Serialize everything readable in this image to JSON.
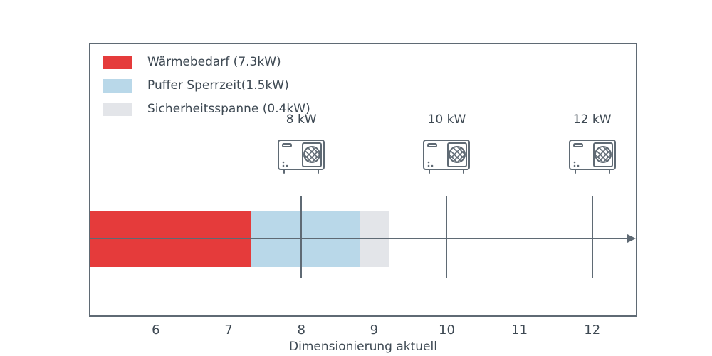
{
  "colors": {
    "red": "#e53b3b",
    "blue": "#b9d8e9",
    "gray": "#e3e5e9",
    "axis": "#5f6a74",
    "text": "#3e4953"
  },
  "legend": {
    "items": [
      {
        "label": "Wärmebedarf (7.3kW)",
        "color": "#e53b3b"
      },
      {
        "label": "Puffer Sperrzeit(1.5kW)",
        "color": "#b9d8e9"
      },
      {
        "label": "Sicherheitsspanne (0.4kW)",
        "color": "#e3e5e9"
      }
    ]
  },
  "chart_data": {
    "type": "bar",
    "orientation": "horizontal-stacked",
    "title": "",
    "xlabel": "Dimensionierung aktuell",
    "xlim": [
      5.1,
      12.6
    ],
    "xticks": [
      6,
      7,
      8,
      9,
      10,
      11,
      12
    ],
    "grid": false,
    "legend_position": "upper-left",
    "series": [
      {
        "name": "Wärmebedarf",
        "value_kw": 7.3,
        "start": 5.1,
        "end": 7.3,
        "color": "#e53b3b"
      },
      {
        "name": "Puffer Sperrzeit",
        "value_kw": 1.5,
        "start": 7.3,
        "end": 8.8,
        "color": "#b9d8e9"
      },
      {
        "name": "Sicherheitsspanne",
        "value_kw": 0.4,
        "start": 8.8,
        "end": 9.2,
        "color": "#e3e5e9"
      }
    ],
    "heat_pump_markers": [
      {
        "x": 8,
        "label": "8 kW"
      },
      {
        "x": 10,
        "label": "10 kW"
      },
      {
        "x": 12,
        "label": "12 kW"
      }
    ]
  }
}
